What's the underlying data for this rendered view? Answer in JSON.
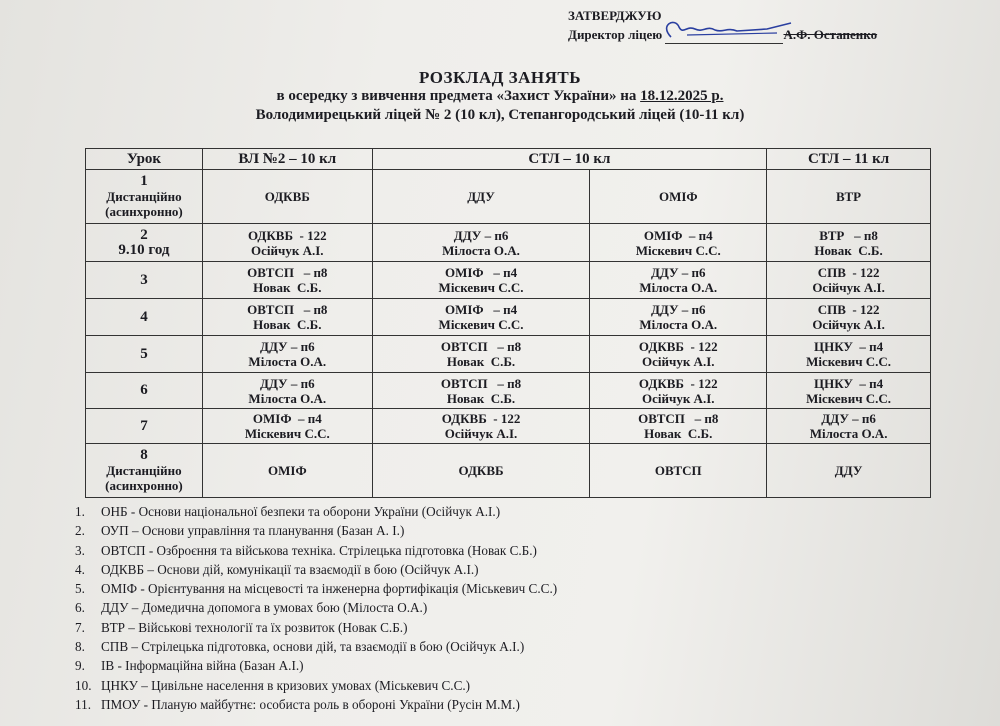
{
  "approval": {
    "label": "ЗАТВЕРДЖУЮ",
    "position": "Директор ліцею",
    "name": "А.Ф. Остапенко"
  },
  "title": {
    "main": "РОЗКЛАД  ЗАНЯТЬ",
    "line2_prefix": "в осередку з вивчення предмета «Захист України» на ",
    "date": "18.12.2025 р.",
    "line3": "Володимирецький ліцей № 2 (10 кл), Степангородський ліцей (10-11 кл)"
  },
  "table": {
    "headers": [
      "Урок",
      "ВЛ №2 – 10 кл",
      "СТЛ – 10 кл",
      "СТЛ – 11 кл"
    ],
    "rows": [
      {
        "lesson": [
          "1",
          "Дистанційно",
          "(асинхронно)"
        ],
        "cells": [
          [
            "ОДКВБ"
          ],
          [
            "ДДУ"
          ],
          [
            "ОМІФ"
          ],
          [
            "ВТР"
          ]
        ]
      },
      {
        "lesson": [
          "2",
          "9.10 год"
        ],
        "cells": [
          [
            "ОДКВБ  - 122",
            "Осійчук А.І."
          ],
          [
            "ДДУ – п6",
            "Мілоста О.А."
          ],
          [
            "ОМІФ  – п4",
            "Міскевич С.С."
          ],
          [
            "ВТР   – п8",
            "Новак  С.Б."
          ]
        ]
      },
      {
        "lesson": [
          "3"
        ],
        "cells": [
          [
            "ОВТСП   – п8",
            "Новак  С.Б."
          ],
          [
            "ОМІФ   – п4",
            "Міскевич С.С."
          ],
          [
            "ДДУ – п6",
            "Мілоста О.А."
          ],
          [
            "СПВ  - 122",
            "Осійчук А.І."
          ]
        ]
      },
      {
        "lesson": [
          "4"
        ],
        "cells": [
          [
            "ОВТСП   – п8",
            "Новак  С.Б."
          ],
          [
            "ОМІФ   – п4",
            "Міскевич С.С."
          ],
          [
            "ДДУ – п6",
            "Мілоста О.А."
          ],
          [
            "СПВ  - 122",
            "Осійчук А.І."
          ]
        ]
      },
      {
        "lesson": [
          "5"
        ],
        "cells": [
          [
            "ДДУ – п6",
            "Мілоста О.А."
          ],
          [
            "ОВТСП   – п8",
            "Новак  С.Б."
          ],
          [
            "ОДКВБ  - 122",
            "Осійчук А.І."
          ],
          [
            "ЦНКУ  – п4",
            "Міскевич С.С."
          ]
        ]
      },
      {
        "lesson": [
          "6"
        ],
        "cells": [
          [
            "ДДУ – п6",
            "Мілоста О.А."
          ],
          [
            "ОВТСП   – п8",
            "Новак  С.Б."
          ],
          [
            "ОДКВБ  - 122",
            "Осійчук А.І."
          ],
          [
            "ЦНКУ  – п4",
            "Міскевич С.С."
          ]
        ]
      },
      {
        "lesson": [
          "7"
        ],
        "cells": [
          [
            "ОМІФ  – п4",
            "Міскевич С.С."
          ],
          [
            "ОДКВБ  - 122",
            "Осійчук А.І."
          ],
          [
            "ОВТСП   – п8",
            "Новак  С.Б."
          ],
          [
            "ДДУ – п6",
            "Мілоста О.А."
          ]
        ]
      },
      {
        "lesson": [
          "8",
          "Дистанційно",
          "(асинхронно)"
        ],
        "cells": [
          [
            "ОМІФ"
          ],
          [
            "ОДКВБ"
          ],
          [
            "ОВТСП"
          ],
          [
            "ДДУ"
          ]
        ]
      }
    ]
  },
  "legend": [
    "ОНБ - Основи національної безпеки та оборони України (Осійчук А.І.)",
    "ОУП – Основи управління та планування (Базан А. І.)",
    "ОВТСП - Озброєння та військова техніка. Стрілецька підготовка (Новак С.Б.)",
    "ОДКВБ – Основи дій, комунікації та взаємодії в бою (Осійчук А.І.)",
    "ОМІФ - Орієнтування на місцевості та інженерна фортифікація (Міськевич С.С.)",
    "ДДУ – Домедична допомога в умовах бою (Мілоста О.А.)",
    "ВТР – Військові технології та їх розвиток (Новак С.Б.)",
    "СПВ – Стрілецька підготовка, основи дій, та взаємодії в бою (Осійчук А.І.)",
    "ІВ - Інформаційна війна (Базан А.І.)",
    "ЦНКУ – Цивільне населення в кризових умовах (Міськевич С.С.)",
    "ПМОУ - Планую майбутнє: особиста роль в обороні України (Русін М.М.)"
  ]
}
